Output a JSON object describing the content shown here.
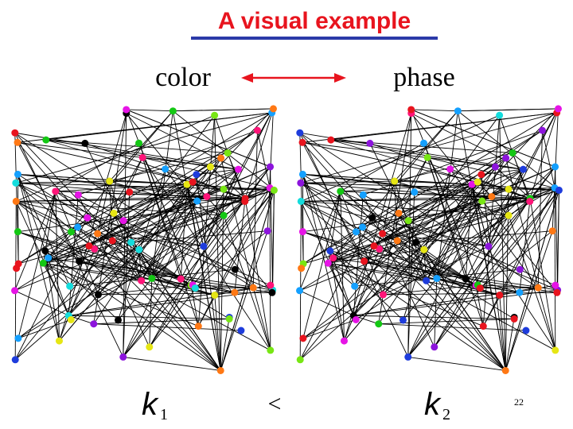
{
  "title": "A visual example",
  "labels": {
    "left": "color",
    "right": "phase"
  },
  "formula": {
    "left_symbol": "k",
    "left_subscript": "1",
    "relation": "<",
    "right_symbol": "k",
    "right_subscript": "2"
  },
  "page_number": "22"
}
